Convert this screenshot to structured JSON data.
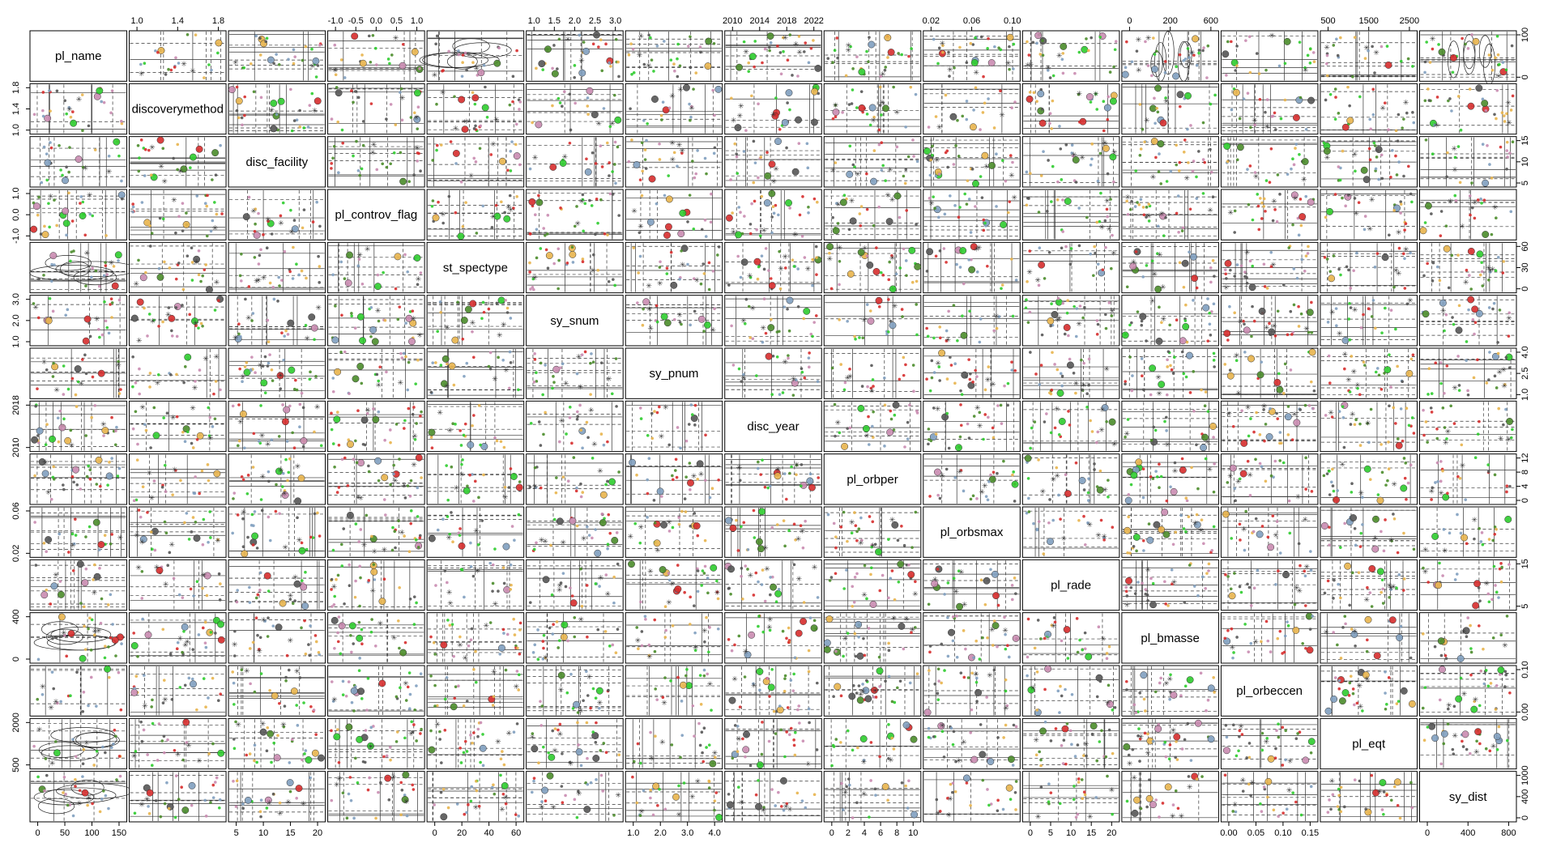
{
  "chart_data": {
    "type": "scatter",
    "title": "",
    "plot_kind": "scatterplot-matrix",
    "variables": [
      {
        "name": "pl_name",
        "ticks": [
          "0",
          "50",
          "100",
          "150"
        ],
        "range": [
          0,
          175
        ]
      },
      {
        "name": "discoverymethod",
        "ticks": [
          "1.0",
          "1.4",
          "1.8"
        ],
        "range": [
          1.0,
          2.0
        ]
      },
      {
        "name": "disc_facility",
        "ticks": [
          "5",
          "10",
          "15",
          "20"
        ],
        "range": [
          0,
          22
        ]
      },
      {
        "name": "pl_controv_flag",
        "ticks": [
          "-1.0",
          "-0.5",
          "0.0",
          "0.5",
          "1.0"
        ],
        "range": [
          -1.0,
          1.0
        ]
      },
      {
        "name": "st_spectype",
        "ticks": [
          "0",
          "20",
          "40",
          "60"
        ],
        "range": [
          0,
          75
        ]
      },
      {
        "name": "sy_snum",
        "ticks": [
          "1.0",
          "1.5",
          "2.0",
          "2.5",
          "3.0"
        ],
        "range": [
          1.0,
          3.0
        ]
      },
      {
        "name": "sy_pnum",
        "ticks": [
          "1.0",
          "2.0",
          "3.0",
          "4.0"
        ],
        "range": [
          1.0,
          4.0
        ]
      },
      {
        "name": "disc_year",
        "ticks": [
          "2010",
          "2014",
          "2018",
          "2022"
        ],
        "range": [
          2005,
          2023
        ]
      },
      {
        "name": "pl_orbper",
        "ticks": [
          "0",
          "2",
          "4",
          "6",
          "8",
          "10"
        ],
        "range": [
          0,
          13
        ]
      },
      {
        "name": "pl_orbsmax",
        "ticks": [
          "0.02",
          "0.06",
          "0.10"
        ],
        "range": [
          0.0,
          0.1
        ]
      },
      {
        "name": "pl_rade",
        "ticks": [
          "0",
          "5",
          "10",
          "15",
          "20"
        ],
        "range": [
          0,
          20
        ]
      },
      {
        "name": "pl_bmasse",
        "ticks": [
          "0",
          "200",
          "600"
        ],
        "range": [
          0,
          800
        ]
      },
      {
        "name": "pl_orbeccen",
        "ticks": [
          "0.00",
          "0.05",
          "0.10",
          "0.15"
        ],
        "range": [
          0.0,
          0.17
        ]
      },
      {
        "name": "pl_eqt",
        "ticks": [
          "500",
          "1500",
          "2500"
        ],
        "range": [
          300,
          2700
        ]
      },
      {
        "name": "sy_dist",
        "ticks": [
          "0",
          "400",
          "800"
        ],
        "range": [
          0,
          1100
        ]
      }
    ],
    "left_axis_ticks": {
      "1": [
        "1.0",
        "1.4",
        "1.8"
      ],
      "3": [
        "-1.0",
        "0.0",
        "1.0"
      ],
      "5": [
        "1.0",
        "2.0",
        "3.0"
      ],
      "7": [
        "2010",
        "2018"
      ],
      "9": [
        "0.02",
        "0.06"
      ],
      "11": [
        "0",
        "400"
      ],
      "13": [
        "500",
        "2000"
      ]
    },
    "right_axis_ticks": {
      "0": [
        "0",
        "100"
      ],
      "2": [
        "5",
        "10",
        "15"
      ],
      "4": [
        "0",
        "30",
        "60"
      ],
      "6": [
        "1.0",
        "2.5",
        "4.0"
      ],
      "8": [
        "0",
        "4",
        "8",
        "12"
      ],
      "10": [
        "5",
        "15"
      ],
      "12": [
        "0.00",
        "0.10"
      ],
      "14": [
        "0",
        "400",
        "1000"
      ]
    },
    "top_axis_vars": [
      1,
      3,
      5,
      7,
      9,
      11,
      13
    ],
    "bottom_axis_vars": [
      0,
      2,
      4,
      6,
      8,
      10,
      12,
      14
    ],
    "point_colors": [
      "#2ecc2e",
      "#d62c2c",
      "#7f9fbf",
      "#e8b44c",
      "#4a8c2a",
      "#c98bb0",
      "#555555"
    ],
    "grid": false,
    "legend": "none"
  }
}
